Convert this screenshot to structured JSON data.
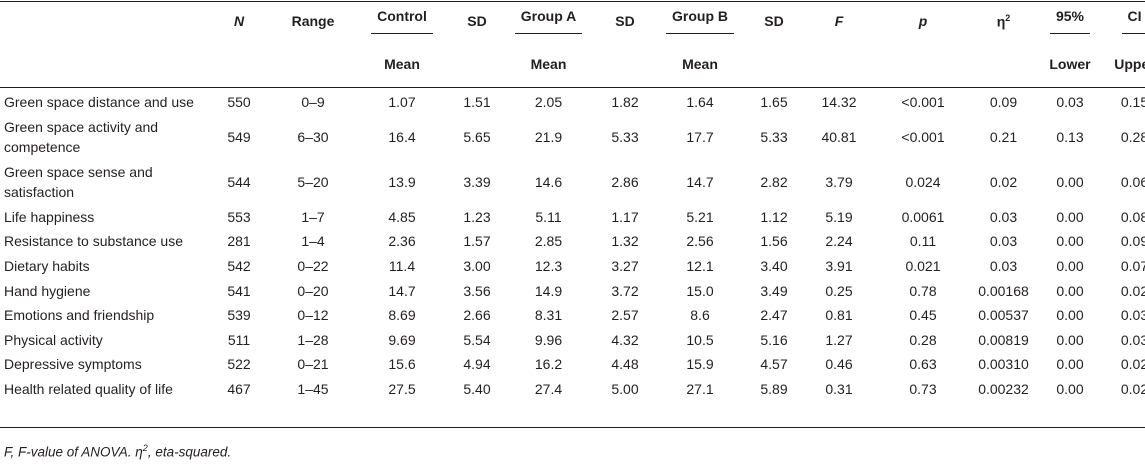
{
  "header": {
    "n": "N",
    "range": "Range",
    "control": "Control",
    "sd1": "SD",
    "group_a": "Group A",
    "sd2": "SD",
    "group_b": "Group B",
    "sd3": "SD",
    "f": "F",
    "p": "p",
    "eta": "η",
    "eta_sup": "2",
    "ci_lower_top": "95%",
    "ci_upper_top": "CI",
    "mean1": "Mean",
    "mean2": "Mean",
    "mean3": "Mean",
    "lower": "Lower",
    "upper": "Upper"
  },
  "rows": [
    {
      "label": "Green space distance and use",
      "n": "550",
      "range": "0–9",
      "c_mean": "1.07",
      "c_sd": "1.51",
      "a_mean": "2.05",
      "a_sd": "1.82",
      "b_mean": "1.64",
      "b_sd": "1.65",
      "f": "14.32",
      "p": "<0.001",
      "eta": "0.09",
      "lower": "0.03",
      "upper": "0.15"
    },
    {
      "label": "Green space activity and competence",
      "n": "549",
      "range": "6–30",
      "c_mean": "16.4",
      "c_sd": "5.65",
      "a_mean": "21.9",
      "a_sd": "5.33",
      "b_mean": "17.7",
      "b_sd": "5.33",
      "f": "40.81",
      "p": "<0.001",
      "eta": "0.21",
      "lower": "0.13",
      "upper": "0.28"
    },
    {
      "label": "Green space sense and satisfaction",
      "n": "544",
      "range": "5–20",
      "c_mean": "13.9",
      "c_sd": "3.39",
      "a_mean": "14.6",
      "a_sd": "2.86",
      "b_mean": "14.7",
      "b_sd": "2.82",
      "f": "3.79",
      "p": "0.024",
      "eta": "0.02",
      "lower": "0.00",
      "upper": "0.06"
    },
    {
      "label": "Life happiness",
      "n": "553",
      "range": "1–7",
      "c_mean": "4.85",
      "c_sd": "1.23",
      "a_mean": "5.11",
      "a_sd": "1.17",
      "b_mean": "5.21",
      "b_sd": "1.12",
      "f": "5.19",
      "p": "0.0061",
      "eta": "0.03",
      "lower": "0.00",
      "upper": "0.08"
    },
    {
      "label": "Resistance to substance use",
      "n": "281",
      "range": "1–4",
      "c_mean": "2.36",
      "c_sd": "1.57",
      "a_mean": "2.85",
      "a_sd": "1.32",
      "b_mean": "2.56",
      "b_sd": "1.56",
      "f": "2.24",
      "p": "0.11",
      "eta": "0.03",
      "lower": "0.00",
      "upper": "0.09"
    },
    {
      "label": "Dietary habits",
      "n": "542",
      "range": "0–22",
      "c_mean": "11.4",
      "c_sd": "3.00",
      "a_mean": "12.3",
      "a_sd": "3.27",
      "b_mean": "12.1",
      "b_sd": "3.40",
      "f": "3.91",
      "p": "0.021",
      "eta": "0.03",
      "lower": "0.00",
      "upper": "0.07"
    },
    {
      "label": "Hand hygiene",
      "n": "541",
      "range": "0–20",
      "c_mean": "14.7",
      "c_sd": "3.56",
      "a_mean": "14.9",
      "a_sd": "3.72",
      "b_mean": "15.0",
      "b_sd": "3.49",
      "f": "0.25",
      "p": "0.78",
      "eta": "0.00168",
      "lower": "0.00",
      "upper": "0.02"
    },
    {
      "label": "Emotions and friendship",
      "n": "539",
      "range": "0–12",
      "c_mean": "8.69",
      "c_sd": "2.66",
      "a_mean": "8.31",
      "a_sd": "2.57",
      "b_mean": "8.6",
      "b_sd": "2.47",
      "f": "0.81",
      "p": "0.45",
      "eta": "0.00537",
      "lower": "0.00",
      "upper": "0.03"
    },
    {
      "label": "Physical activity",
      "n": "511",
      "range": "1–28",
      "c_mean": "9.69",
      "c_sd": "5.54",
      "a_mean": "9.96",
      "a_sd": "4.32",
      "b_mean": "10.5",
      "b_sd": "5.16",
      "f": "1.27",
      "p": "0.28",
      "eta": "0.00819",
      "lower": "0.00",
      "upper": "0.03"
    },
    {
      "label": "Depressive symptoms",
      "n": "522",
      "range": "0–21",
      "c_mean": "15.6",
      "c_sd": "4.94",
      "a_mean": "16.2",
      "a_sd": "4.48",
      "b_mean": "15.9",
      "b_sd": "4.57",
      "f": "0.46",
      "p": "0.63",
      "eta": "0.00310",
      "lower": "0.00",
      "upper": "0.02"
    },
    {
      "label": "Health related quality of life",
      "n": "467",
      "range": "1–45",
      "c_mean": "27.5",
      "c_sd": "5.40",
      "a_mean": "27.4",
      "a_sd": "5.00",
      "b_mean": "27.1",
      "b_sd": "5.89",
      "f": "0.31",
      "p": "0.73",
      "eta": "0.00232",
      "lower": "0.00",
      "upper": "0.02"
    }
  ],
  "footnote": {
    "part1": "F, F-value of ANOVA. η",
    "sup": "2",
    "part2": ", eta-squared."
  }
}
